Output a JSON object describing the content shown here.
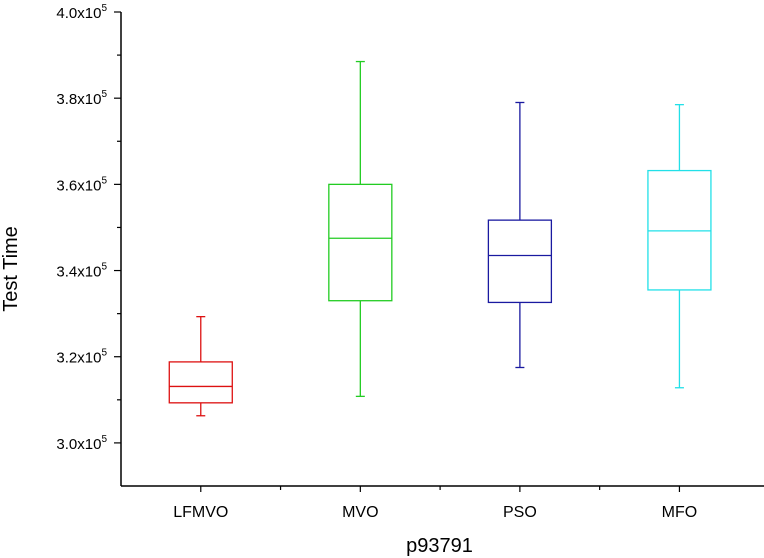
{
  "chart_data": {
    "type": "boxplot",
    "title": "",
    "xlabel": "p93791",
    "ylabel": "Test Time",
    "ylim": [
      290000,
      400000
    ],
    "y_major_ticks": [
      300000,
      320000,
      340000,
      360000,
      380000,
      400000
    ],
    "y_tick_labels": [
      {
        "mantissa": "3.0x10",
        "exponent": "5"
      },
      {
        "mantissa": "3.2x10",
        "exponent": "5"
      },
      {
        "mantissa": "3.4x10",
        "exponent": "5"
      },
      {
        "mantissa": "3.6x10",
        "exponent": "5"
      },
      {
        "mantissa": "3.8x10",
        "exponent": "5"
      },
      {
        "mantissa": "4.0x10",
        "exponent": "5"
      }
    ],
    "y_minor_step": 10000,
    "categories": [
      "LFMVO",
      "MVO",
      "PSO",
      "MFO"
    ],
    "series": [
      {
        "name": "LFMVO",
        "color": "#dd1111",
        "whisker_low": 306300,
        "q1": 309300,
        "median": 313100,
        "q3": 318800,
        "whisker_high": 329300
      },
      {
        "name": "MVO",
        "color": "#22cc22",
        "whisker_low": 310800,
        "q1": 333000,
        "median": 347500,
        "q3": 360000,
        "whisker_high": 388500
      },
      {
        "name": "PSO",
        "color": "#1a1aa0",
        "whisker_low": 317500,
        "q1": 332600,
        "median": 343500,
        "q3": 351700,
        "whisker_high": 379000
      },
      {
        "name": "MFO",
        "color": "#22e0e8",
        "whisker_low": 312800,
        "q1": 335500,
        "median": 349200,
        "q3": 363200,
        "whisker_high": 378500
      }
    ]
  }
}
